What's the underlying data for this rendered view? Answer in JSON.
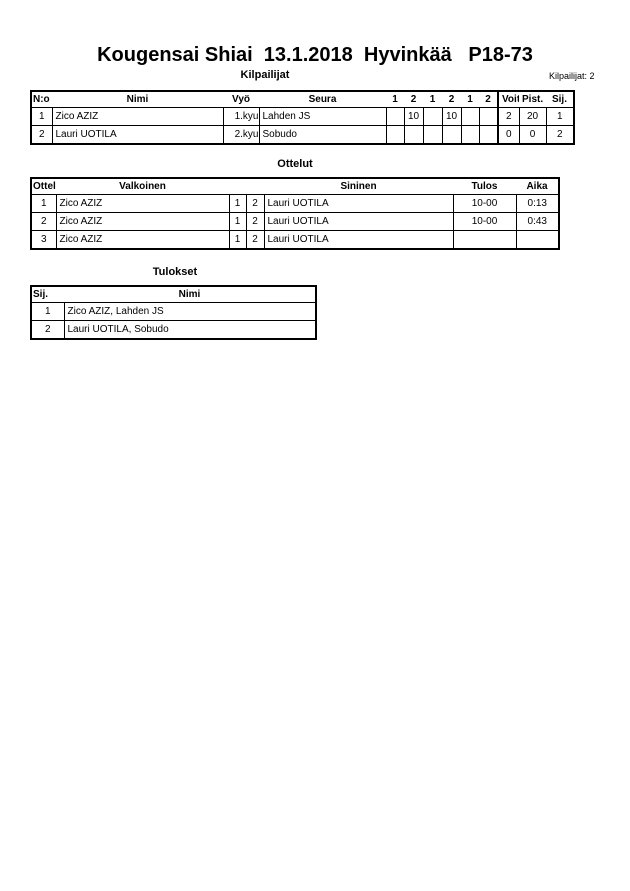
{
  "title": "Kougensai Shiai  13.1.2018  Hyvinkää   P18-73",
  "competitors": {
    "heading": "Kilpailijat",
    "count_label": "Kilpailijat: 2",
    "headers": [
      "N:o",
      "Nimi",
      "Vyö",
      "Seura",
      "1",
      "2",
      "1",
      "2",
      "1",
      "2",
      "Voit.",
      "Pist.",
      "Sij."
    ],
    "rows": [
      [
        "1",
        "Zico AZIZ",
        "1.kyu",
        "Lahden JS",
        "",
        "10",
        "",
        "10",
        "",
        "",
        "2",
        "20",
        "1"
      ],
      [
        "2",
        "Lauri UOTILA",
        "2.kyu",
        "Sobudo",
        "",
        "",
        "",
        "",
        "",
        "",
        "0",
        "0",
        "2"
      ]
    ]
  },
  "matches": {
    "heading": "Ottelut",
    "headers": [
      "Ottelu",
      "Valkoinen",
      "",
      "",
      "Sininen",
      "Tulos",
      "Aika"
    ],
    "rows": [
      [
        "1",
        "Zico AZIZ",
        "1",
        "2",
        "Lauri UOTILA",
        "10-00",
        "0:13"
      ],
      [
        "2",
        "Zico AZIZ",
        "1",
        "2",
        "Lauri UOTILA",
        "10-00",
        "0:43"
      ],
      [
        "3",
        "Zico AZIZ",
        "1",
        "2",
        "Lauri UOTILA",
        "",
        ""
      ]
    ]
  },
  "results": {
    "heading": "Tulokset",
    "headers": [
      "Sij.",
      "Nimi"
    ],
    "rows": [
      [
        "1",
        "Zico AZIZ, Lahden JS"
      ],
      [
        "2",
        "Lauri UOTILA, Sobudo"
      ]
    ]
  }
}
